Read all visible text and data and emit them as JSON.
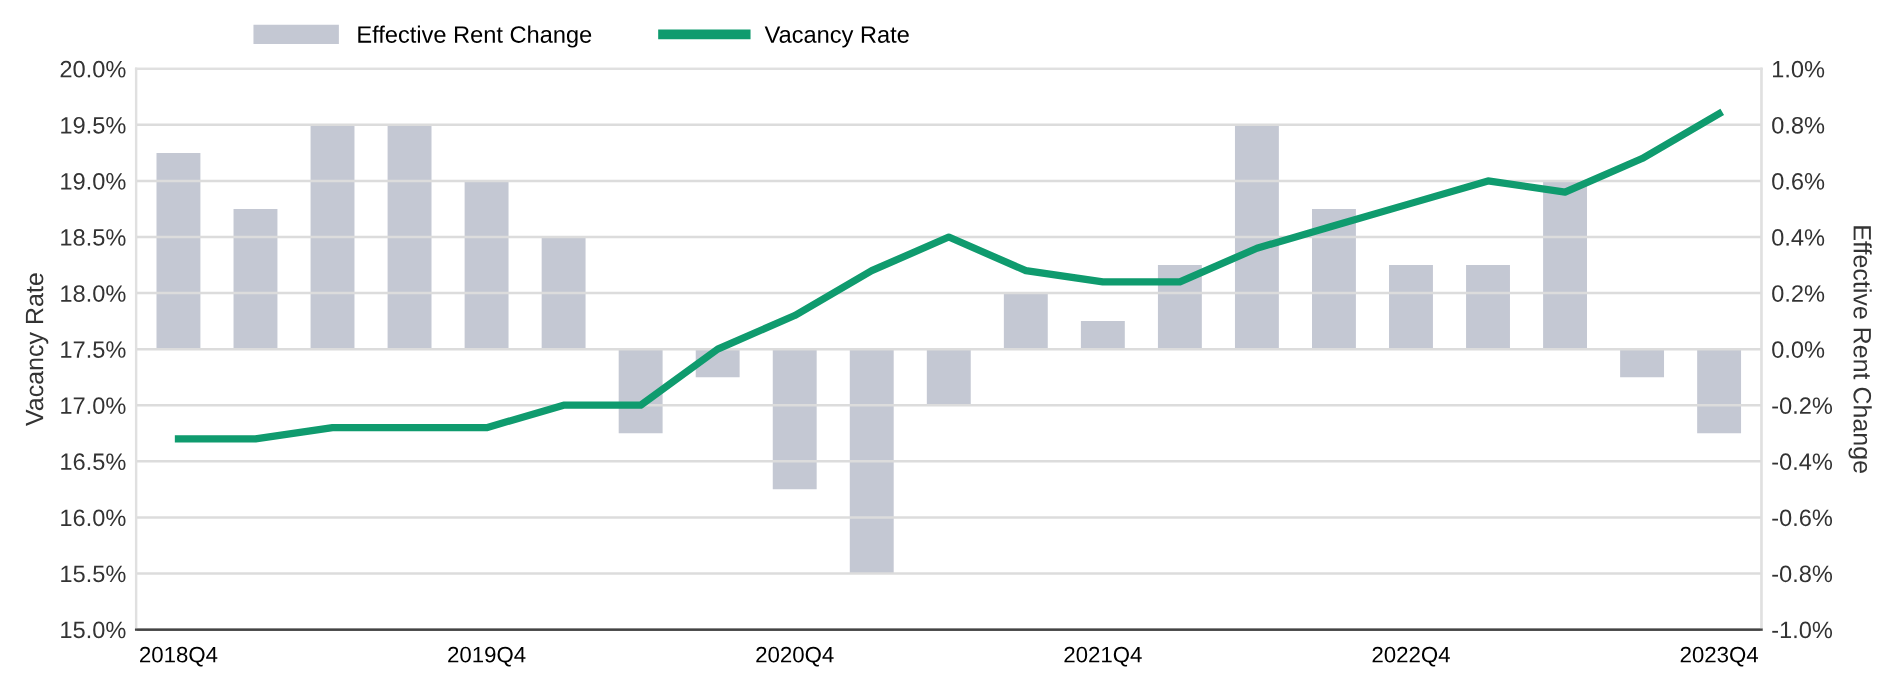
{
  "chart_data": {
    "type": "bar",
    "categories": [
      "2018Q4",
      null,
      null,
      null,
      "2019Q4",
      null,
      null,
      null,
      "2020Q4",
      null,
      null,
      null,
      "2021Q4",
      null,
      null,
      null,
      "2022Q4",
      null,
      null,
      null,
      "2023Q4"
    ],
    "series": [
      {
        "name": "Effective Rent Change",
        "axis": "y2",
        "color": "#c4c8d3",
        "values": [
          0.7,
          0.5,
          0.8,
          0.8,
          0.6,
          0.4,
          -0.3,
          -0.1,
          -0.5,
          -0.8,
          -0.2,
          0.2,
          0.1,
          0.3,
          0.8,
          0.5,
          0.3,
          0.3,
          0.6,
          -0.1,
          -0.3
        ]
      },
      {
        "name": "Vacancy Rate",
        "type": "line",
        "axis": "y",
        "color": "#0f9b6e",
        "values": [
          16.7,
          16.7,
          16.8,
          16.8,
          16.8,
          17.0,
          17.0,
          17.5,
          17.8,
          18.2,
          18.5,
          18.2,
          18.1,
          18.1,
          18.4,
          18.6,
          18.8,
          19.0,
          18.9,
          19.2,
          19.6
        ]
      }
    ],
    "ylabel": "Vacancy Rate",
    "y2label": "Effective Rent Change",
    "ylim": [
      15.0,
      20.0
    ],
    "yticks": [
      {
        "value": 15.0,
        "label": "15.0%"
      },
      {
        "value": 15.5,
        "label": "15.5%"
      },
      {
        "value": 16.0,
        "label": "16.0%"
      },
      {
        "value": 16.5,
        "label": "16.5%"
      },
      {
        "value": 17.0,
        "label": "17.0%"
      },
      {
        "value": 17.5,
        "label": "17.5%"
      },
      {
        "value": 18.0,
        "label": "18.0%"
      },
      {
        "value": 18.5,
        "label": "18.5%"
      },
      {
        "value": 19.0,
        "label": "19.0%"
      },
      {
        "value": 19.5,
        "label": "19.5%"
      },
      {
        "value": 20.0,
        "label": "20.0%"
      }
    ],
    "y2lim": [
      -1.0,
      1.0
    ],
    "y2ticks": [
      {
        "value": -1.0,
        "label": "-1.0%"
      },
      {
        "value": -0.8,
        "label": "-0.8%"
      },
      {
        "value": -0.6,
        "label": "-0.6%"
      },
      {
        "value": -0.4,
        "label": "-0.4%"
      },
      {
        "value": -0.2,
        "label": "-0.2%"
      },
      {
        "value": 0.0,
        "label": "0.0%"
      },
      {
        "value": 0.2,
        "label": "0.2%"
      },
      {
        "value": 0.4,
        "label": "0.4%"
      },
      {
        "value": 0.6,
        "label": "0.6%"
      },
      {
        "value": 0.8,
        "label": "0.8%"
      },
      {
        "value": 1.0,
        "label": "1.0%"
      }
    ],
    "grid": "y",
    "legend": "top",
    "marker": "none",
    "line_style": "solid"
  }
}
